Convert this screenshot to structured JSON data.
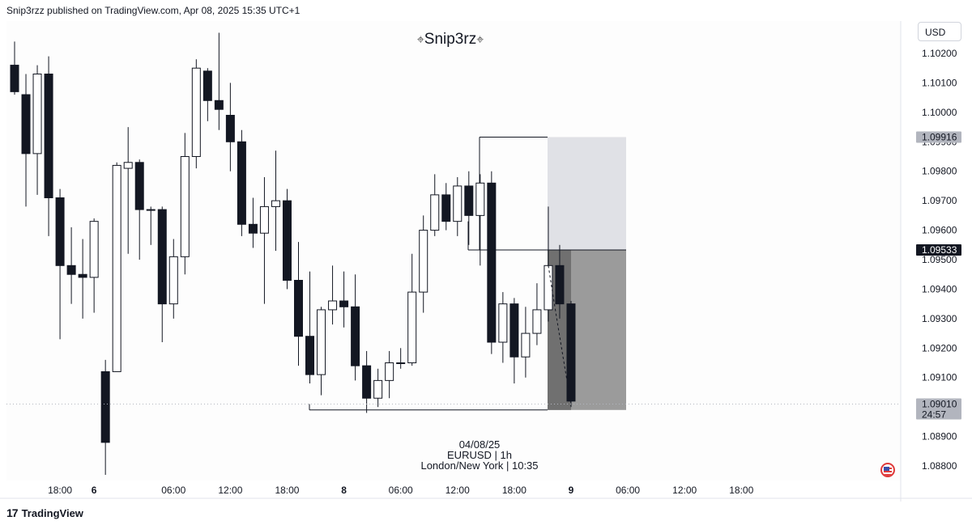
{
  "header": {
    "published_text": "Snip3rzz published on TradingView.com, Apr 08, 2025 15:35 UTC+1"
  },
  "watermark": {
    "left_glyph": "⌖",
    "name": "Snip3rz",
    "right_glyph": "⌖"
  },
  "currency": "USD",
  "info": {
    "date": "04/08/25",
    "symbol_line": "EURUSD | 1h",
    "session_line": "London/New York | 10:35"
  },
  "footer": {
    "brand": "TradingView",
    "logo_glyph": "17"
  },
  "colors": {
    "bear": "#131722",
    "bull": "#ffffff",
    "outline": "#131722",
    "target_zone": "#e0e1e6",
    "stop_zone": "#9b9b9b",
    "dark_zone": "#707070",
    "grid": "#f0f3fa",
    "last_price_bg": "#131722",
    "level_bg": "#b2b5be"
  },
  "chart_data": {
    "type": "candlestick",
    "symbol": "EURUSD",
    "timeframe": "1h",
    "ylim": [
      1.0875,
      1.103
    ],
    "y_ticks": [
      "1.10200",
      "1.10100",
      "1.10000",
      "1.09900",
      "1.09800",
      "1.09700",
      "1.09600",
      "1.09500",
      "1.09400",
      "1.09300",
      "1.09200",
      "1.09100",
      "1.09000",
      "1.08900",
      "1.08800"
    ],
    "x_ticks": [
      {
        "label": "18:00",
        "bold": false,
        "idx": 4
      },
      {
        "label": "6",
        "bold": true,
        "idx": 7
      },
      {
        "label": "06:00",
        "bold": false,
        "idx": 14
      },
      {
        "label": "12:00",
        "bold": false,
        "idx": 19
      },
      {
        "label": "18:00",
        "bold": false,
        "idx": 24
      },
      {
        "label": "8",
        "bold": true,
        "idx": 29
      },
      {
        "label": "06:00",
        "bold": false,
        "idx": 34
      },
      {
        "label": "12:00",
        "bold": false,
        "idx": 39
      },
      {
        "label": "18:00",
        "bold": false,
        "idx": 44
      },
      {
        "label": "9",
        "bold": true,
        "idx": 49
      },
      {
        "label": "06:00",
        "bold": false,
        "idx": 54
      },
      {
        "label": "12:00",
        "bold": false,
        "idx": 59
      },
      {
        "label": "18:00",
        "bold": false,
        "idx": 64
      }
    ],
    "candles": [
      [
        1.1016,
        1.1007,
        1.1024,
        1.1006
      ],
      [
        1.1006,
        1.0986,
        1.1013,
        1.0968
      ],
      [
        1.0986,
        1.1013,
        1.1016,
        1.0972
      ],
      [
        1.1013,
        1.0971,
        1.1019,
        1.0958
      ],
      [
        1.0971,
        1.0948,
        1.0974,
        1.0923
      ],
      [
        1.0948,
        1.0945,
        1.0961,
        1.0935
      ],
      [
        1.0945,
        1.0944,
        1.0957,
        1.093
      ],
      [
        1.0944,
        1.0963,
        1.0964,
        1.0932
      ],
      [
        1.0912,
        1.0888,
        1.0916,
        1.0877
      ],
      [
        1.0912,
        1.0982,
        1.0983,
        1.0912
      ],
      [
        1.0981,
        1.0983,
        1.0995,
        1.0952
      ],
      [
        1.0983,
        1.0967,
        1.0984,
        1.095
      ],
      [
        1.0967,
        1.0967,
        1.0968,
        1.0955
      ],
      [
        1.0967,
        1.0935,
        1.0968,
        1.0922
      ],
      [
        1.0935,
        1.0951,
        1.0957,
        1.093
      ],
      [
        1.0951,
        1.0985,
        1.0993,
        1.0945
      ],
      [
        1.0985,
        1.1015,
        1.1018,
        1.0981
      ],
      [
        1.1014,
        1.1004,
        1.1015,
        1.0997
      ],
      [
        1.1004,
        1.1001,
        1.1027,
        1.0994
      ],
      [
        1.0999,
        1.099,
        1.101,
        1.098
      ],
      [
        1.099,
        1.0962,
        1.0994,
        1.0958
      ],
      [
        1.0962,
        1.0959,
        1.0971,
        1.0954
      ],
      [
        1.0959,
        1.0968,
        1.0978,
        1.0935
      ],
      [
        1.0968,
        1.097,
        1.0987,
        1.0953
      ],
      [
        1.097,
        1.0943,
        1.0974,
        1.094
      ],
      [
        1.0943,
        1.0924,
        1.0956,
        1.0914
      ],
      [
        1.0924,
        1.0911,
        1.0946,
        1.0908
      ],
      [
        1.0911,
        1.0933,
        1.0934,
        1.0904
      ],
      [
        1.0933,
        1.0936,
        1.0948,
        1.0928
      ],
      [
        1.0936,
        1.0934,
        1.0946,
        1.0927
      ],
      [
        1.0934,
        1.0914,
        1.0945,
        1.0909
      ],
      [
        1.0914,
        1.0903,
        1.0919,
        1.0898
      ],
      [
        1.0903,
        1.0909,
        1.0913,
        1.09
      ],
      [
        1.0909,
        1.0915,
        1.0919,
        1.0903
      ],
      [
        1.0915,
        1.0915,
        1.092,
        1.0913
      ],
      [
        1.0915,
        1.0939,
        1.0952,
        1.0914
      ],
      [
        1.0939,
        1.096,
        1.0965,
        1.0932
      ],
      [
        1.096,
        1.0972,
        1.0979,
        1.0958
      ],
      [
        1.0972,
        1.0963,
        1.0976,
        1.096
      ],
      [
        1.0963,
        1.0975,
        1.0978,
        1.0958
      ],
      [
        1.0975,
        1.0965,
        1.098,
        1.0955
      ],
      [
        1.0965,
        1.0976,
        1.0979,
        1.0948
      ],
      [
        1.0976,
        1.0922,
        1.098,
        1.0918
      ],
      [
        1.0922,
        1.0935,
        1.0939,
        1.0915
      ],
      [
        1.0935,
        1.0917,
        1.0937,
        1.0908
      ],
      [
        1.0917,
        1.0925,
        1.0934,
        1.091
      ],
      [
        1.0925,
        1.0933,
        1.0942,
        1.0921
      ],
      [
        1.0933,
        1.0948,
        1.0968,
        1.0929
      ],
      [
        1.0948,
        1.0935,
        1.0955,
        1.093
      ],
      [
        1.0935,
        1.0902,
        1.0936,
        1.09
      ]
    ],
    "levels": {
      "upper": 1.09916,
      "mid": 1.09533,
      "lower": 1.0899
    },
    "price_labels": [
      {
        "value": "1.09916",
        "style": "level"
      },
      {
        "value": "1.09533",
        "style": "last"
      },
      {
        "value": "1.09010",
        "style": "level",
        "sub": "24:57"
      }
    ],
    "current_price": 1.0901
  }
}
